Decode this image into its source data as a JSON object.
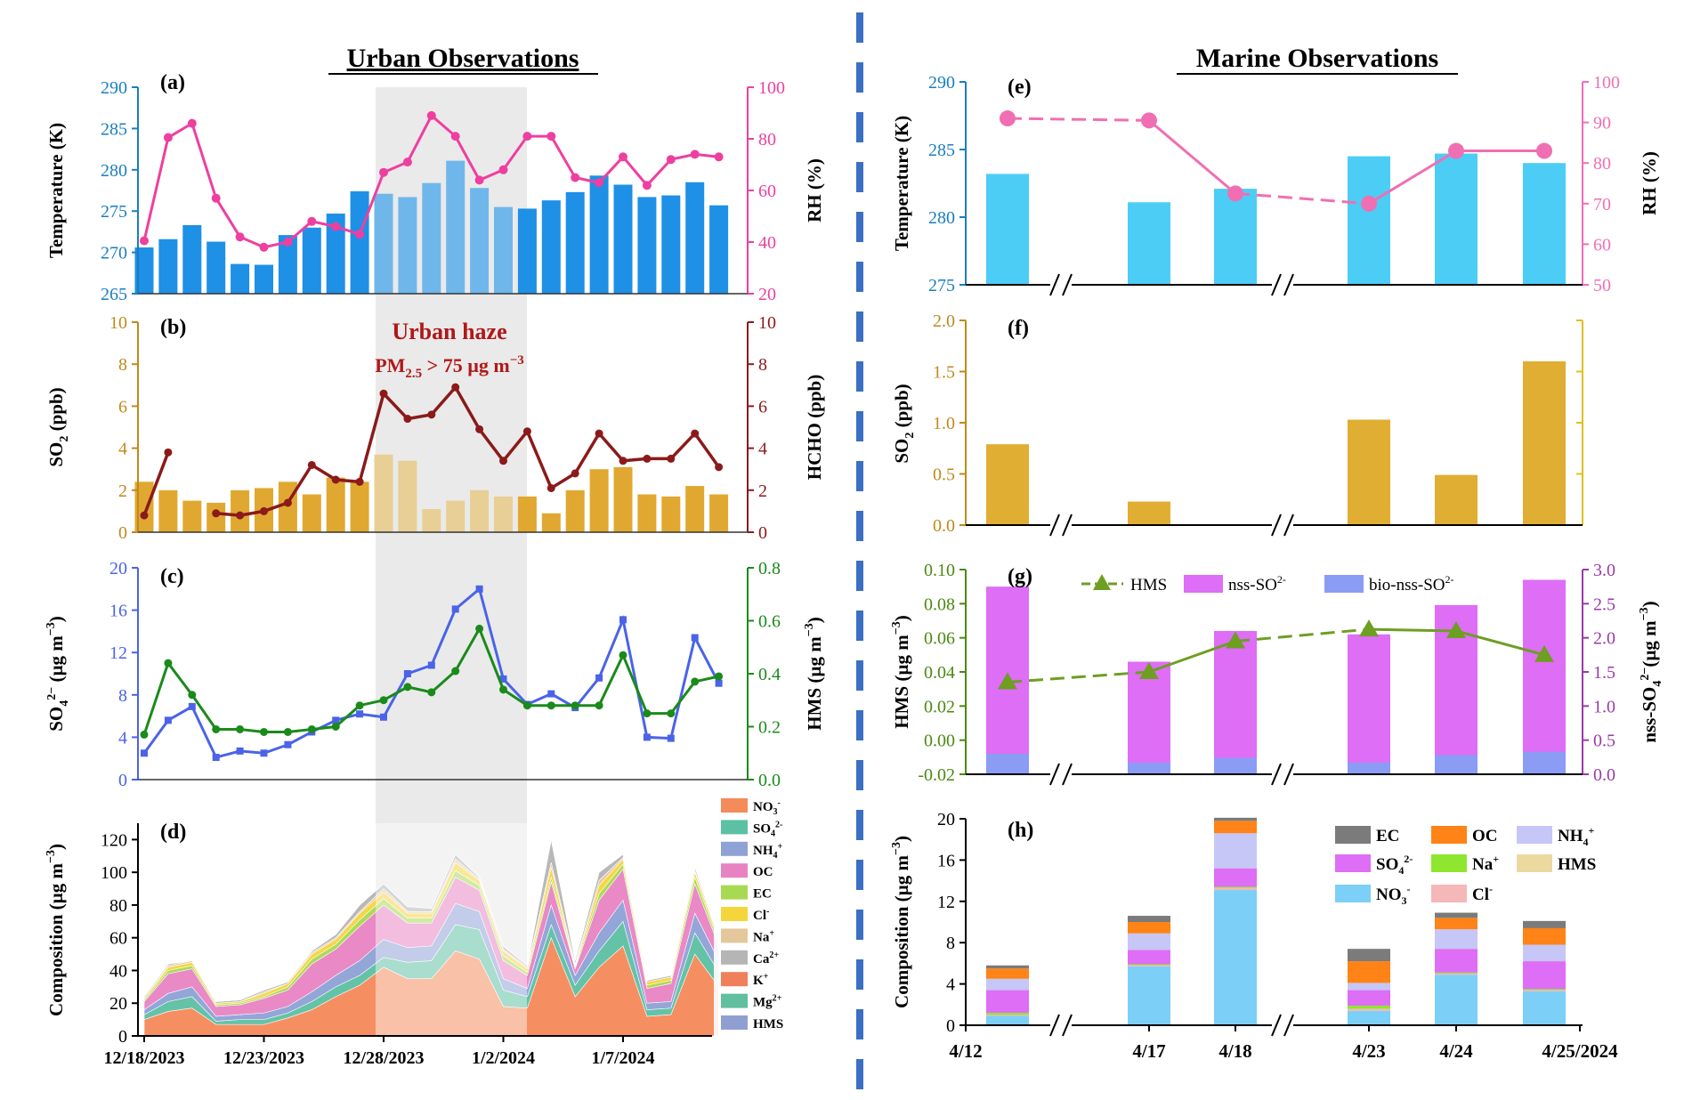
{
  "chart_data": [
    {
      "panel": "(a)",
      "type": "bar+line",
      "title": "Urban Observations",
      "ylabel": "Temperature (K)",
      "ylim": [
        265,
        290
      ],
      "yticks": [
        265,
        270,
        275,
        280,
        285,
        290
      ],
      "y2label": "RH (%)",
      "y2lim": [
        20,
        100
      ],
      "y2ticks": [
        20,
        40,
        60,
        80,
        100
      ],
      "x": [
        "2023-12-18",
        "2023-12-19",
        "2023-12-20",
        "2023-12-21",
        "2023-12-22",
        "2023-12-23",
        "2023-12-24",
        "2023-12-25",
        "2023-12-26",
        "2023-12-27",
        "2023-12-28",
        "2023-12-29",
        "2023-12-30",
        "2023-12-31",
        "2024-01-01",
        "2024-01-02",
        "2024-01-03",
        "2024-01-04",
        "2024-01-05",
        "2024-01-06",
        "2024-01-07",
        "2024-01-08",
        "2024-01-09",
        "2024-01-10",
        "2024-01-11"
      ],
      "series": [
        {
          "name": "Temperature",
          "kind": "bar",
          "axis": "left",
          "color": "#1e90e6",
          "values": [
            270.6,
            271.6,
            273.3,
            271.3,
            268.6,
            268.5,
            272.1,
            273.0,
            274.7,
            277.4,
            277.1,
            276.7,
            278.4,
            281.1,
            277.8,
            275.5,
            275.3,
            276.3,
            277.3,
            279.3,
            278.2,
            276.7,
            276.9,
            278.5,
            275.7
          ]
        },
        {
          "name": "RH",
          "kind": "line",
          "axis": "right",
          "color": "#ee3fa0",
          "values": [
            40.5,
            80.5,
            86,
            57,
            42,
            38,
            40,
            48,
            46,
            43,
            67,
            71,
            89,
            81,
            64,
            68,
            81,
            81,
            65,
            63,
            73,
            62,
            72,
            74,
            73
          ]
        }
      ]
    },
    {
      "panel": "(b)",
      "type": "bar+line",
      "ylabel": "SO2 (ppb)",
      "ylim": [
        0,
        10
      ],
      "yticks": [
        0,
        2,
        4,
        6,
        8,
        10
      ],
      "y2label": "HCHO (ppb)",
      "y2lim": [
        0,
        10
      ],
      "y2ticks": [
        0,
        2,
        4,
        6,
        8,
        10
      ],
      "annotation": {
        "text": "Urban haze",
        "text2": "PM2.5 > 75 µg m⁻³"
      },
      "series": [
        {
          "name": "SO2",
          "kind": "bar",
          "axis": "left",
          "color": "#e0a830",
          "values": [
            2.4,
            2.0,
            1.5,
            1.4,
            2.0,
            2.1,
            2.4,
            1.8,
            2.6,
            2.4,
            3.7,
            3.4,
            1.1,
            1.5,
            2.0,
            1.7,
            1.7,
            0.9,
            2.0,
            3.0,
            3.1,
            1.8,
            1.7,
            2.2,
            1.8
          ]
        },
        {
          "name": "HCHO",
          "kind": "line",
          "axis": "right",
          "color": "#8b1a1a",
          "values": [
            0.8,
            3.8,
            null,
            null,
            0.9,
            0.8,
            1.0,
            1.4,
            3.2,
            2.5,
            2.4,
            6.6,
            5.4,
            5.6,
            6.9,
            4.9,
            3.4,
            4.8,
            2.1,
            2.8,
            4.7,
            3.4,
            3.5,
            3.5,
            4.7,
            3.1
          ],
          "x_index": [
            0,
            1,
            null,
            null,
            3,
            4,
            5,
            6,
            7,
            8,
            9,
            10,
            11,
            12,
            13,
            14,
            15,
            16,
            17,
            18,
            19,
            20,
            21,
            22,
            23,
            24
          ]
        }
      ]
    },
    {
      "panel": "(c)",
      "type": "line",
      "ylabel": "SO42- (µg m-3)",
      "ylim": [
        0,
        20
      ],
      "yticks": [
        0,
        4,
        8,
        12,
        16,
        20
      ],
      "y2label": "HMS (µg m-3)",
      "y2lim": [
        0,
        0.8
      ],
      "y2ticks": [
        0.0,
        0.2,
        0.4,
        0.6,
        0.8
      ],
      "series": [
        {
          "name": "SO42-",
          "axis": "left",
          "color": "#4a63e8",
          "values": [
            2.5,
            5.6,
            6.9,
            2.1,
            2.7,
            2.5,
            3.3,
            4.5,
            5.6,
            6.2,
            5.9,
            10.0,
            10.8,
            16.1,
            18.0,
            9.5,
            7.1,
            8.1,
            6.8,
            9.6,
            15.1,
            4.0,
            3.9,
            13.4,
            9.1
          ]
        },
        {
          "name": "HMS",
          "axis": "right",
          "color": "#1a8a1a",
          "values": [
            0.17,
            0.44,
            0.32,
            0.19,
            0.19,
            0.18,
            0.18,
            0.19,
            0.2,
            0.28,
            0.3,
            0.35,
            0.33,
            0.41,
            0.57,
            0.34,
            0.28,
            0.28,
            0.28,
            0.28,
            0.47,
            0.25,
            0.25,
            0.37,
            0.39
          ]
        }
      ]
    },
    {
      "panel": "(d)",
      "type": "area",
      "ylabel": "Composition (µg m-3)",
      "ylim": [
        0,
        130
      ],
      "yticks": [
        0,
        20,
        40,
        60,
        80,
        100,
        120
      ],
      "xticklabels": [
        "12/18/2023",
        "12/23/2023",
        "12/28/2023",
        "1/2/2024",
        "1/7/2024"
      ],
      "legend": [
        "NO3-",
        "SO42-",
        "NH4+",
        "OC",
        "EC",
        "Cl-",
        "Na+",
        "Ca2+",
        "K+",
        "Mg2+",
        "HMS"
      ],
      "totals": [
        24,
        44,
        46,
        21,
        22,
        28,
        33,
        52,
        62,
        80,
        93,
        79,
        78,
        111,
        97,
        55,
        43,
        120,
        46,
        100,
        111,
        34,
        37,
        103,
        60
      ],
      "components": [
        {
          "name": "NO3-",
          "color": "#f58a5a",
          "values": [
            10,
            15,
            17,
            7,
            7,
            7,
            11,
            16,
            24,
            31,
            42,
            35,
            35,
            52,
            47,
            18,
            17,
            60,
            24,
            42,
            55,
            12,
            13,
            50,
            30
          ]
        },
        {
          "name": "SO42-",
          "color": "#5cc0a3",
          "values": [
            3,
            6,
            7,
            2,
            3,
            3,
            3,
            5,
            6,
            6,
            6,
            10,
            11,
            16,
            18,
            10,
            7,
            8,
            7,
            10,
            15,
            4,
            4,
            13,
            9
          ]
        },
        {
          "name": "NH4+",
          "color": "#8ea2d6",
          "values": [
            3,
            5,
            6,
            3,
            3,
            4,
            4,
            6,
            7,
            9,
            11,
            9,
            9,
            13,
            11,
            7,
            5,
            12,
            6,
            11,
            13,
            4,
            4,
            12,
            7
          ]
        },
        {
          "name": "OC",
          "color": "#e883c2",
          "values": [
            5,
            12,
            11,
            6,
            6,
            9,
            10,
            17,
            16,
            21,
            21,
            15,
            14,
            16,
            13,
            11,
            8,
            14,
            4,
            20,
            19,
            9,
            11,
            18,
            9
          ]
        },
        {
          "name": "EC",
          "color": "#a8d952",
          "values": [
            1,
            2,
            2,
            1,
            1,
            1,
            2,
            3,
            3,
            4,
            4,
            3,
            3,
            4,
            3,
            3,
            2,
            3,
            1,
            4,
            3,
            2,
            2,
            4,
            2
          ]
        },
        {
          "name": "Cl-",
          "color": "#f4d53c",
          "values": [
            1,
            2,
            2,
            1,
            1,
            2,
            2,
            3,
            3,
            4,
            4,
            3,
            3,
            5,
            3,
            3,
            2,
            6,
            1,
            5,
            3,
            2,
            2,
            3,
            2
          ]
        },
        {
          "name": "Na+",
          "color": "#e4c79a",
          "values": [
            0,
            1,
            1,
            0,
            0,
            1,
            0,
            1,
            1,
            1,
            2,
            1,
            1,
            2,
            1,
            1,
            1,
            3,
            1,
            3,
            1,
            0,
            0,
            1,
            0
          ]
        },
        {
          "name": "Ca2+",
          "color": "#b5b5b5",
          "values": [
            1,
            1,
            0,
            1,
            1,
            1,
            1,
            1,
            2,
            4,
            3,
            3,
            2,
            3,
            1,
            2,
            1,
            14,
            2,
            5,
            2,
            1,
            1,
            2,
            1
          ]
        },
        {
          "name": "K+",
          "color": "#f07f5c",
          "values": [
            0,
            0,
            0,
            0,
            0,
            0,
            0,
            0,
            0,
            0,
            0,
            0,
            0,
            0,
            0,
            0,
            0,
            0,
            0,
            0,
            0,
            0,
            0,
            0,
            0
          ]
        },
        {
          "name": "Mg2+",
          "color": "#5fbf9e",
          "values": [
            0,
            0,
            0,
            0,
            0,
            0,
            0,
            0,
            0,
            0,
            0,
            0,
            0,
            0,
            0,
            0,
            0,
            0,
            0,
            0,
            0,
            0,
            0,
            0,
            0
          ]
        },
        {
          "name": "HMS",
          "color": "#8f9fd2",
          "values": [
            0,
            0,
            0,
            0,
            0,
            0,
            0,
            0,
            0,
            0,
            0,
            0,
            0,
            0,
            0,
            0,
            0,
            0,
            0,
            0,
            0,
            0,
            0,
            0,
            0
          ]
        }
      ]
    },
    {
      "panel": "(e)",
      "type": "bar+line",
      "title": "Marine Observations",
      "ylabel": "Temperature (K)",
      "ylim": [
        275,
        290
      ],
      "yticks": [
        275,
        280,
        285,
        290
      ],
      "y2label": "RH (%)",
      "y2lim": [
        50,
        100
      ],
      "y2ticks": [
        50,
        60,
        70,
        80,
        90,
        100
      ],
      "categories": [
        "4/12",
        "4/17",
        "4/18",
        "4/23",
        "4/24",
        "4/25/2024"
      ],
      "series": [
        {
          "name": "Temperature",
          "kind": "bar",
          "axis": "left",
          "color": "#4ccdf5",
          "values": [
            283.2,
            281.1,
            282.1,
            284.5,
            284.7,
            284.0
          ]
        },
        {
          "name": "RH",
          "kind": "line",
          "axis": "right",
          "color": "#f06fb3",
          "values": [
            91,
            90.5,
            72.5,
            70,
            83,
            83
          ]
        }
      ]
    },
    {
      "panel": "(f)",
      "type": "bar",
      "ylabel": "SO2 (ppb)",
      "ylim": [
        0,
        2.0
      ],
      "yticks": [
        0.0,
        0.5,
        1.0,
        1.5,
        2.0
      ],
      "categories": [
        "4/12",
        "4/17",
        "4/18",
        "4/23",
        "4/24",
        "4/25/2024"
      ],
      "series": [
        {
          "name": "SO2",
          "color": "#e0ae32",
          "values": [
            0.79,
            0.23,
            null,
            1.03,
            0.49,
            1.6
          ]
        }
      ]
    },
    {
      "panel": "(g)",
      "type": "bar+line",
      "ylabel": "HMS (µg m-3)",
      "ylim": [
        -0.02,
        0.1
      ],
      "yticks": [
        -0.02,
        0.0,
        0.02,
        0.04,
        0.06,
        0.08,
        0.1
      ],
      "y2label": "nss-SO42-(µg m-3)",
      "y2lim": [
        0,
        3.0
      ],
      "y2ticks": [
        0.0,
        0.5,
        1.0,
        1.5,
        2.0,
        2.5,
        3.0
      ],
      "categories": [
        "4/12",
        "4/17",
        "4/18",
        "4/23",
        "4/24",
        "4/25/2024"
      ],
      "series": [
        {
          "name": "HMS",
          "kind": "line",
          "axis": "left",
          "color": "#6e9e22",
          "values": [
            0.034,
            0.04,
            0.058,
            0.065,
            0.064,
            0.05
          ]
        },
        {
          "name": "nss-SO42-",
          "kind": "bar",
          "axis": "right",
          "color": "#dd6ef5",
          "values": [
            2.75,
            1.65,
            2.1,
            2.05,
            2.48,
            2.85
          ]
        },
        {
          "name": "bio-nss-SO42-",
          "kind": "bar",
          "axis": "right",
          "color": "#8b9cf5",
          "values": [
            0.3,
            0.17,
            0.24,
            0.17,
            0.28,
            0.33
          ]
        }
      ]
    },
    {
      "panel": "(h)",
      "type": "stacked-bar",
      "ylabel": "Composition (µg m-3)",
      "ylim": [
        0,
        20
      ],
      "yticks": [
        0,
        4,
        8,
        12,
        16,
        20
      ],
      "xticklabels": [
        "4/12",
        "4/17",
        "4/18",
        "4/23",
        "4/24",
        "4/25/2024"
      ],
      "legend": [
        "EC",
        "OC",
        "NH4+",
        "SO42-",
        "Na+",
        "HMS",
        "NO3-",
        "Cl-"
      ],
      "components": [
        {
          "name": "NO3-",
          "color": "#7ccff7",
          "values": [
            0.9,
            5.7,
            13.1,
            1.4,
            4.9,
            3.3
          ]
        },
        {
          "name": "Cl-",
          "color": "#f5b7b7",
          "values": [
            0.1,
            0.1,
            0.2,
            0.2,
            0.1,
            0.1
          ]
        },
        {
          "name": "HMS",
          "color": "#ecd9a0",
          "values": [
            0.0,
            0.0,
            0.0,
            0.0,
            0.0,
            0.0
          ]
        },
        {
          "name": "Na+",
          "color": "#8ee62e",
          "values": [
            0.2,
            0.1,
            0.1,
            0.3,
            0.1,
            0.1
          ]
        },
        {
          "name": "SO42-",
          "color": "#dd6ef5",
          "values": [
            2.2,
            1.4,
            1.8,
            1.5,
            2.3,
            2.7
          ]
        },
        {
          "name": "NH4+",
          "color": "#c6c6f7",
          "values": [
            1.1,
            1.6,
            3.4,
            0.7,
            1.9,
            1.6
          ]
        },
        {
          "name": "OC",
          "color": "#ff8316",
          "values": [
            1.0,
            1.1,
            1.2,
            2.1,
            1.1,
            1.6
          ]
        },
        {
          "name": "EC",
          "color": "#7b7b7b",
          "values": [
            0.3,
            0.6,
            0.3,
            1.2,
            0.5,
            0.7
          ]
        }
      ]
    }
  ],
  "labels": {
    "urban_title": "Urban Observations",
    "marine_title": "Marine Observations",
    "panels": [
      "(a)",
      "(b)",
      "(c)",
      "(d)",
      "(e)",
      "(f)",
      "(g)",
      "(h)"
    ],
    "haze_line1": "Urban haze",
    "haze_line2": "PM",
    "haze_sub": "2.5",
    "haze_line2b": " > 75 µg m",
    "haze_sup": "−3",
    "ylab_a_left": "Temperature (K)",
    "ylab_a_right": "RH (%)",
    "ylab_b_left": "SO",
    "ylab_b_left_sub": "2",
    "ylab_b_left_b": " (ppb)",
    "ylab_b_right": "HCHO (ppb)",
    "ylab_c_left": "SO",
    "ylab_c_left_sub": "4",
    "ylab_c_left_sup": "2−",
    "ylab_c_left_b": " (µg m",
    "ylab_c_left_sup2": "−3",
    "ylab_c_left_c": ")",
    "ylab_c_right": "HMS (µg m",
    "ylab_c_right_sup": "−3",
    "ylab_c_right_b": ")",
    "ylab_d": "Composition  (µg m",
    "ylab_d_sup": "−3",
    "ylab_d_b": ")",
    "ylab_e_left": "Temperature (K)",
    "ylab_e_right": "RH (%)",
    "ylab_f": "SO",
    "ylab_f_sub": "2",
    "ylab_f_b": " (ppb)",
    "ylab_g_left": "HMS (µg m",
    "ylab_g_left_sup": "−3",
    "ylab_g_left_b": ")",
    "ylab_g_right": "nss-SO",
    "ylab_g_right_sub": "4",
    "ylab_g_right_sup": "2−",
    "ylab_g_right_b": "(µg m",
    "ylab_g_right_sup2": "−3",
    "ylab_g_right_c": ")",
    "ylab_h": "Composition  (µg m",
    "ylab_h_sup": "−3",
    "ylab_h_b": ")",
    "legend_g": [
      "HMS",
      "nss-SO",
      "bio-nss-SO"
    ],
    "legend_g_sub": "4",
    "legend_g_sup": "2-"
  }
}
